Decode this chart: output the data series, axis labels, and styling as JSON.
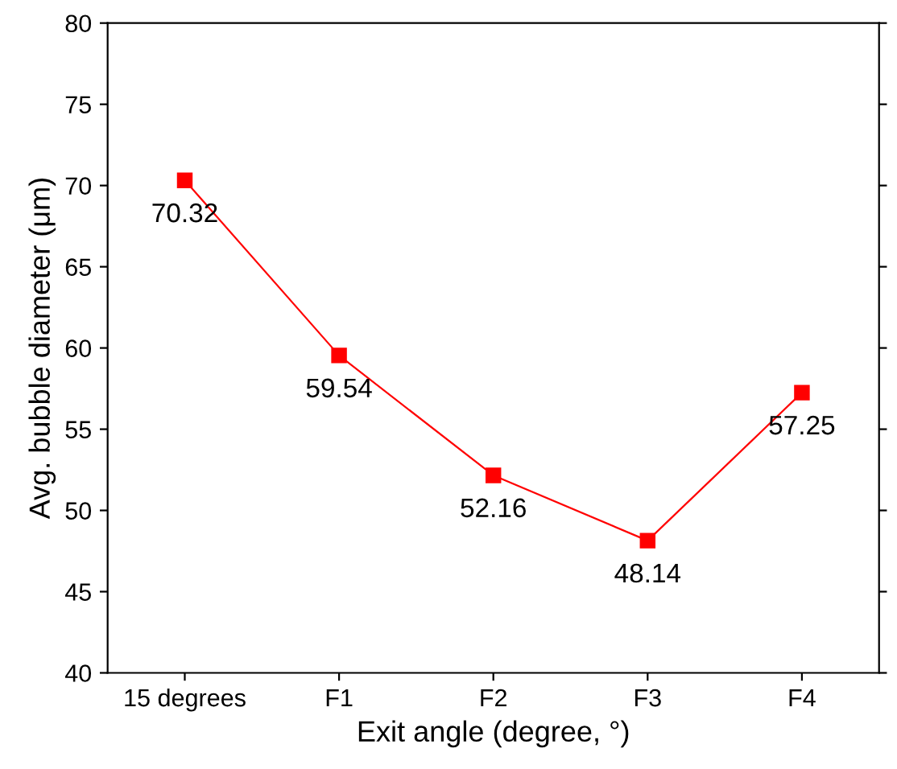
{
  "chart_data": {
    "type": "line",
    "xlabel": "Exit angle (degree, °)",
    "ylabel": "Avg. bubble diameter (μm)",
    "categories": [
      "15 degrees",
      "F1",
      "F2",
      "F3",
      "F4"
    ],
    "series": [
      {
        "color": "#ff0000",
        "values": [
          70.32,
          59.54,
          52.16,
          48.14,
          57.25
        ]
      }
    ],
    "ylim": [
      40,
      80
    ],
    "yticks": [
      40,
      45,
      50,
      55,
      60,
      65,
      70,
      75,
      80
    ],
    "marker": "square",
    "line_style": "solid",
    "data_labels": true,
    "grid": false,
    "legend": false
  }
}
